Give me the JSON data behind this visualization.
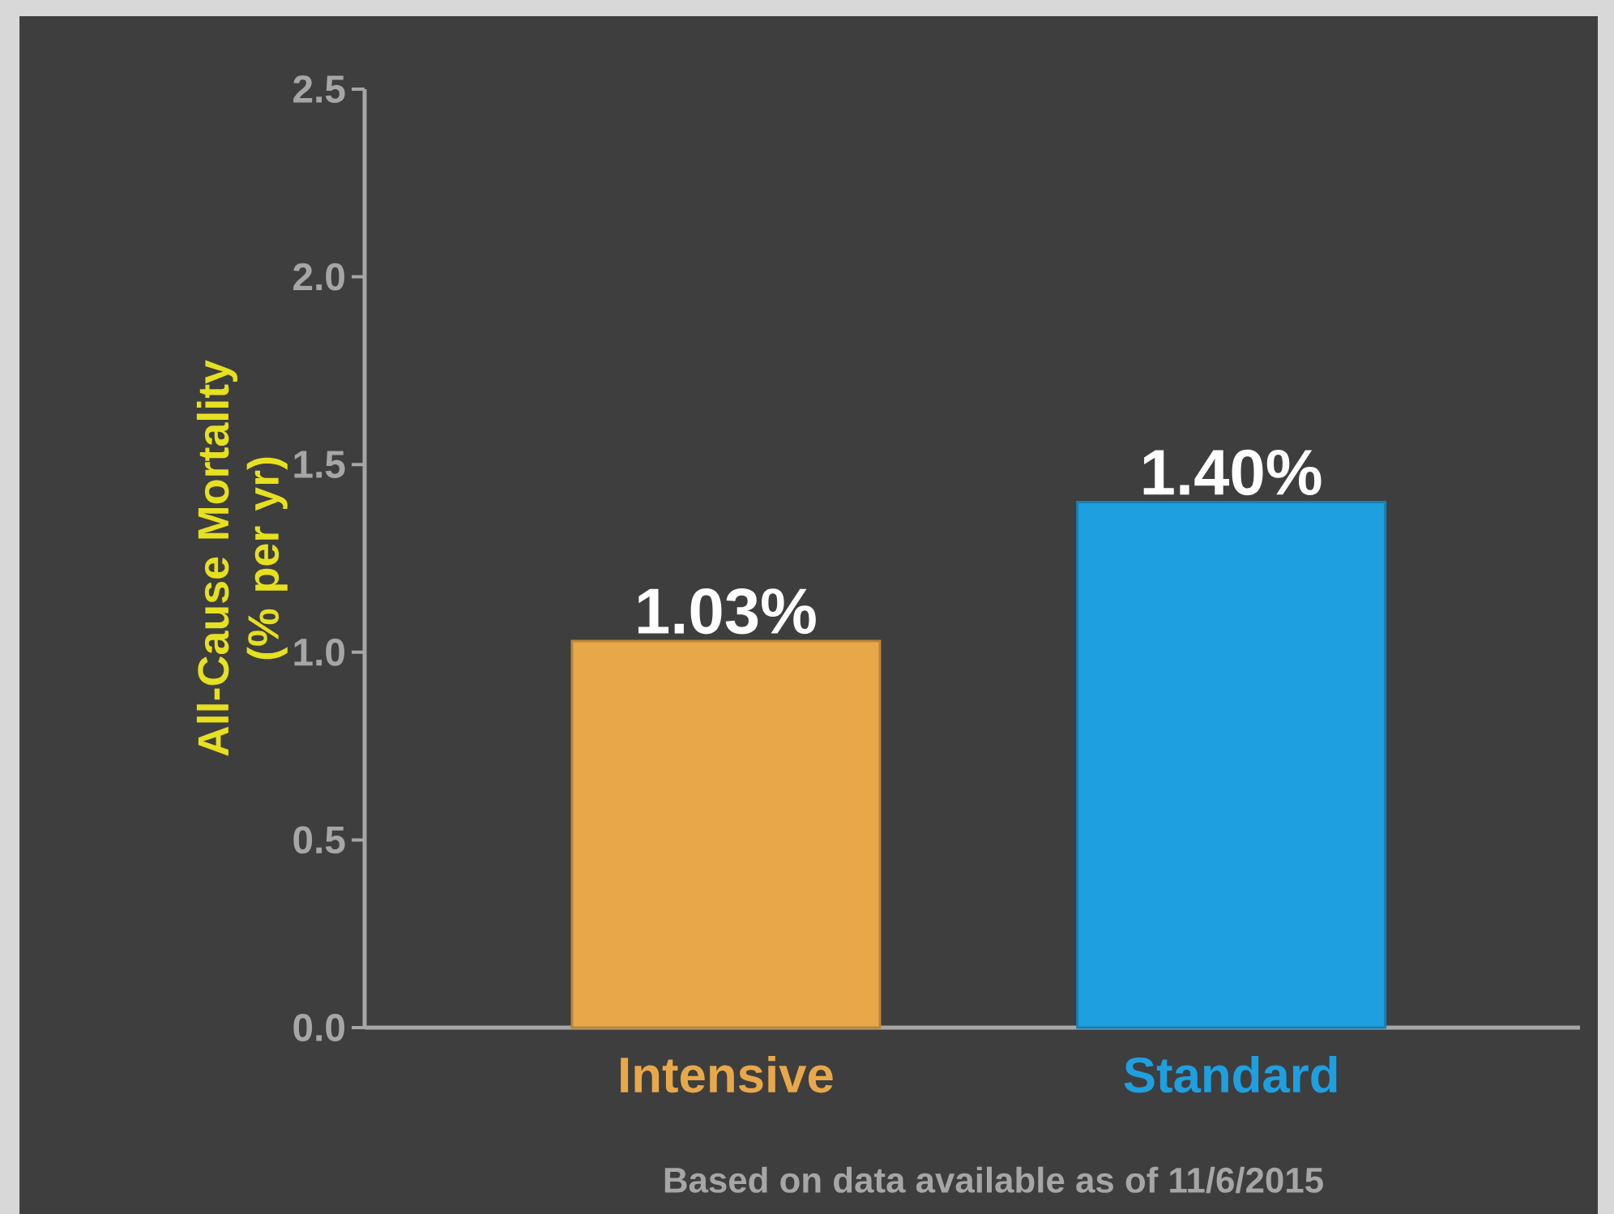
{
  "chart_data": {
    "type": "bar",
    "ylabel": "All-Cause Mortality (% per yr)",
    "categories": [
      "Intensive",
      "Standard"
    ],
    "values": [
      1.03,
      1.4
    ],
    "colors": [
      "#e8a84a",
      "#1ea0e0"
    ],
    "value_labels": [
      "1.03%",
      "1.40%"
    ],
    "ylim": [
      0,
      2.5
    ],
    "yticks": [
      {
        "value": 0,
        "label": "0.0"
      },
      {
        "value": 0.5,
        "label": "0.5"
      },
      {
        "value": 1,
        "label": "1.0"
      },
      {
        "value": 1.5,
        "label": "1.5"
      },
      {
        "value": 2,
        "label": "2.0"
      },
      {
        "value": 2.5,
        "label": "2.5"
      }
    ],
    "annotations": [
      "Based on data available as of 11/6/2015"
    ]
  }
}
